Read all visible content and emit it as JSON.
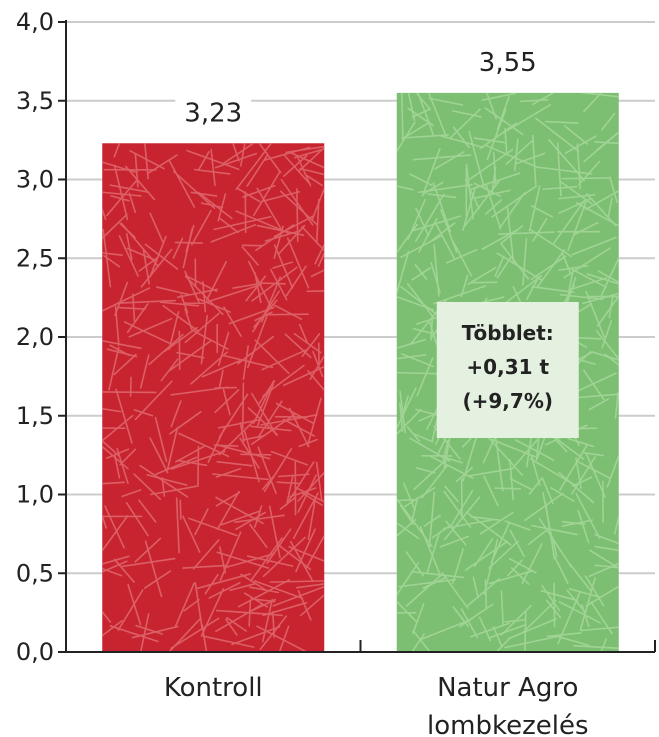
{
  "chart_data": {
    "type": "bar",
    "categories": [
      "Kontroll",
      "Natur Agro\nlombkezelés"
    ],
    "values": [
      3.23,
      3.55
    ],
    "data_labels": [
      "3,23",
      "3,55"
    ],
    "ylim": [
      0,
      4
    ],
    "y_ticks": [
      0,
      0.5,
      1,
      1.5,
      2,
      2.5,
      3,
      3.5,
      4
    ],
    "y_tick_labels": [
      "0,0",
      "0,5",
      "1,0",
      "1,5",
      "2,0",
      "2,5",
      "3,0",
      "3,5",
      "4,0"
    ],
    "grid": true,
    "bar_colors": [
      "#c8242f",
      "#7dbf72"
    ],
    "texture_colors": [
      "#e06a70",
      "#a6d79c"
    ],
    "annotation": {
      "series_index": 1,
      "lines": [
        "Többlet:",
        "+0,31 t",
        "(+9,7%)"
      ],
      "background": "#e4f0e0"
    }
  }
}
